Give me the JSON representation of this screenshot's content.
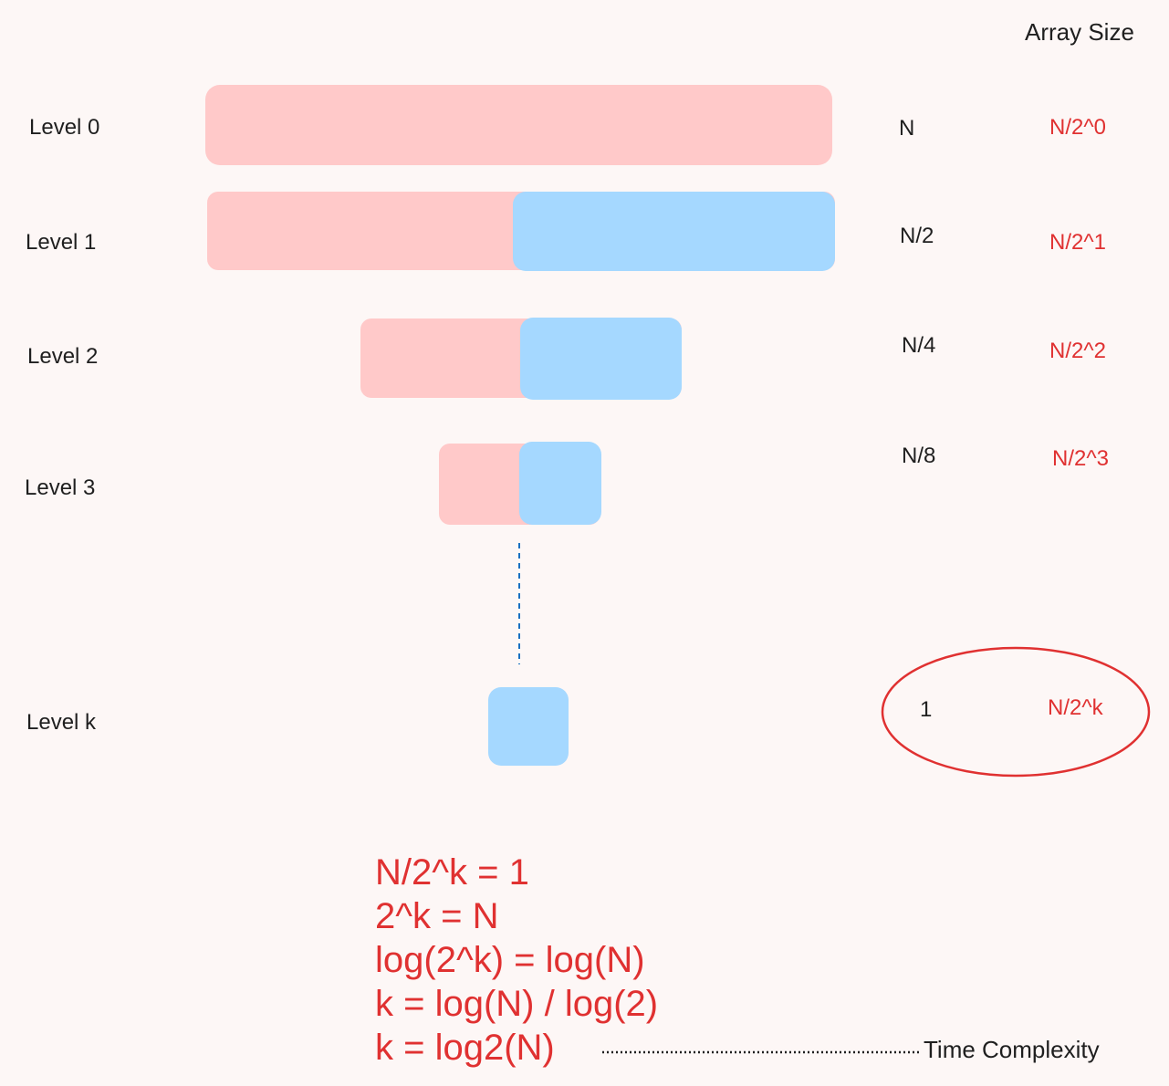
{
  "header": "Array Size",
  "levels": [
    {
      "label": "Level 0",
      "size": "N",
      "formula": "N/2^0"
    },
    {
      "label": "Level 1",
      "size": "N/2",
      "formula": "N/2^1"
    },
    {
      "label": "Level 2",
      "size": "N/4",
      "formula": "N/2^2"
    },
    {
      "label": "Level 3",
      "size": "N/8",
      "formula": "N/2^3"
    },
    {
      "label": "Level k",
      "size": "1",
      "formula": "N/2^k"
    }
  ],
  "derivation": [
    "N/2^k = 1",
    "2^k = N",
    "log(2^k) = log(N)",
    "k = log(N) / log(2)",
    "k = log2(N)"
  ],
  "time_complexity_label": "Time Complexity",
  "colors": {
    "left_half": "#ffc9c9",
    "right_half": "#a5d8ff",
    "formula_text": "#e03131",
    "connector": "#1971c2"
  }
}
